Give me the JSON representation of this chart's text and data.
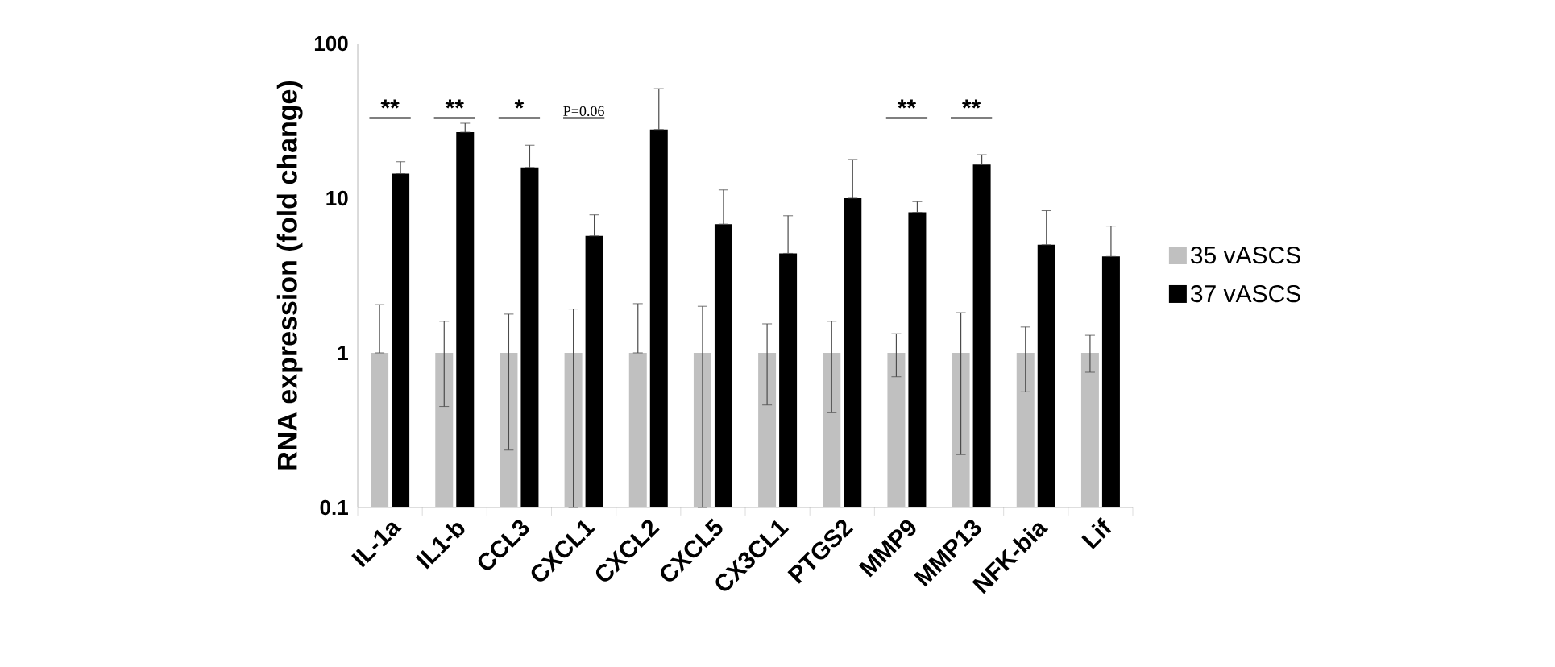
{
  "chart_data": {
    "type": "bar",
    "ylabel": "RNA expression (fold change)",
    "categories": [
      "IL-1a",
      "IL1-b",
      "CCL3",
      "CXCL1",
      "CXCL2",
      "CXCL5",
      "CX3CL1",
      "PTGS2",
      "MMP9",
      "MMP13",
      "NFK-bia",
      "Lif"
    ],
    "series": [
      {
        "name": "35 vASCS",
        "color": "#c0c0c0",
        "values": [
          1,
          1,
          1,
          1,
          1,
          1,
          1,
          1,
          1,
          1,
          1,
          1
        ],
        "errors": [
          [
            1,
            2.05
          ],
          [
            0.45,
            1.6
          ],
          [
            0.235,
            1.78
          ],
          [
            0.1,
            1.92
          ],
          [
            1,
            2.08
          ],
          [
            0.1,
            2.0
          ],
          [
            0.46,
            1.54
          ],
          [
            0.41,
            1.6
          ],
          [
            0.7,
            1.33
          ],
          [
            0.22,
            1.82
          ],
          [
            0.56,
            1.47
          ],
          [
            0.75,
            1.3
          ]
        ]
      },
      {
        "name": "37 vASCS",
        "color": "#000000",
        "values": [
          14.4,
          26.7,
          15.8,
          5.7,
          27.8,
          6.8,
          4.4,
          10.0,
          8.1,
          16.5,
          5.0,
          4.2
        ],
        "errors": [
          [
            14.4,
            17.2
          ],
          [
            26.7,
            30.5
          ],
          [
            15.8,
            22
          ],
          [
            5.7,
            7.8
          ],
          [
            27.8,
            51
          ],
          [
            6.8,
            11.3
          ],
          [
            4.4,
            7.7
          ],
          [
            10.0,
            17.8
          ],
          [
            8.1,
            9.5
          ],
          [
            16.5,
            19.1
          ],
          [
            5.0,
            8.3
          ],
          [
            4.2,
            6.6
          ]
        ]
      }
    ],
    "log": true,
    "ylim": [
      0.1,
      100
    ],
    "yticks": [
      0.1,
      1,
      10,
      100
    ],
    "legend": "right",
    "annotations": [
      "**",
      "**",
      "*",
      "P=0.06",
      "**",
      "**"
    ]
  }
}
